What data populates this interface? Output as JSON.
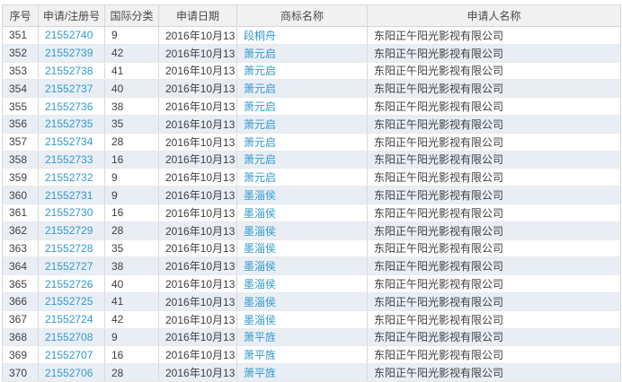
{
  "colors": {
    "link_blue": "#3399cc",
    "header_bg": "#f1f1f1",
    "alt_row_bg": "#e9eef5",
    "body_text": "#404040"
  },
  "table": {
    "columns": [
      {
        "key": "seq",
        "label": "序号"
      },
      {
        "key": "reg_no",
        "label": "申请/注册号"
      },
      {
        "key": "intl_class",
        "label": "国际分类"
      },
      {
        "key": "apply_date",
        "label": "申请日期"
      },
      {
        "key": "trademark_name",
        "label": "商标名称"
      },
      {
        "key": "applicant",
        "label": "申请人名称"
      }
    ],
    "rows": [
      {
        "seq": "351",
        "reg_no": "21552740",
        "intl_class": "9",
        "apply_date": "2016年10月13日",
        "trademark_name": "段桐舟",
        "applicant": "东阳正午阳光影视有限公司"
      },
      {
        "seq": "352",
        "reg_no": "21552739",
        "intl_class": "42",
        "apply_date": "2016年10月13日",
        "trademark_name": "萧元启",
        "applicant": "东阳正午阳光影视有限公司"
      },
      {
        "seq": "353",
        "reg_no": "21552738",
        "intl_class": "41",
        "apply_date": "2016年10月13日",
        "trademark_name": "萧元启",
        "applicant": "东阳正午阳光影视有限公司"
      },
      {
        "seq": "354",
        "reg_no": "21552737",
        "intl_class": "40",
        "apply_date": "2016年10月13日",
        "trademark_name": "萧元启",
        "applicant": "东阳正午阳光影视有限公司"
      },
      {
        "seq": "355",
        "reg_no": "21552736",
        "intl_class": "38",
        "apply_date": "2016年10月13日",
        "trademark_name": "萧元启",
        "applicant": "东阳正午阳光影视有限公司"
      },
      {
        "seq": "356",
        "reg_no": "21552735",
        "intl_class": "35",
        "apply_date": "2016年10月13日",
        "trademark_name": "萧元启",
        "applicant": "东阳正午阳光影视有限公司"
      },
      {
        "seq": "357",
        "reg_no": "21552734",
        "intl_class": "28",
        "apply_date": "2016年10月13日",
        "trademark_name": "萧元启",
        "applicant": "东阳正午阳光影视有限公司"
      },
      {
        "seq": "358",
        "reg_no": "21552733",
        "intl_class": "16",
        "apply_date": "2016年10月13日",
        "trademark_name": "萧元启",
        "applicant": "东阳正午阳光影视有限公司"
      },
      {
        "seq": "359",
        "reg_no": "21552732",
        "intl_class": "9",
        "apply_date": "2016年10月13日",
        "trademark_name": "萧元启",
        "applicant": "东阳正午阳光影视有限公司"
      },
      {
        "seq": "360",
        "reg_no": "21552731",
        "intl_class": "9",
        "apply_date": "2016年10月13日",
        "trademark_name": "墨淄侯",
        "applicant": "东阳正午阳光影视有限公司"
      },
      {
        "seq": "361",
        "reg_no": "21552730",
        "intl_class": "16",
        "apply_date": "2016年10月13日",
        "trademark_name": "墨淄侯",
        "applicant": "东阳正午阳光影视有限公司"
      },
      {
        "seq": "362",
        "reg_no": "21552729",
        "intl_class": "28",
        "apply_date": "2016年10月13日",
        "trademark_name": "墨淄侯",
        "applicant": "东阳正午阳光影视有限公司"
      },
      {
        "seq": "363",
        "reg_no": "21552728",
        "intl_class": "35",
        "apply_date": "2016年10月13日",
        "trademark_name": "墨淄侯",
        "applicant": "东阳正午阳光影视有限公司"
      },
      {
        "seq": "364",
        "reg_no": "21552727",
        "intl_class": "38",
        "apply_date": "2016年10月13日",
        "trademark_name": "墨淄侯",
        "applicant": "东阳正午阳光影视有限公司"
      },
      {
        "seq": "365",
        "reg_no": "21552726",
        "intl_class": "40",
        "apply_date": "2016年10月13日",
        "trademark_name": "墨淄侯",
        "applicant": "东阳正午阳光影视有限公司"
      },
      {
        "seq": "366",
        "reg_no": "21552725",
        "intl_class": "41",
        "apply_date": "2016年10月13日",
        "trademark_name": "墨淄侯",
        "applicant": "东阳正午阳光影视有限公司"
      },
      {
        "seq": "367",
        "reg_no": "21552724",
        "intl_class": "42",
        "apply_date": "2016年10月13日",
        "trademark_name": "墨淄侯",
        "applicant": "东阳正午阳光影视有限公司"
      },
      {
        "seq": "368",
        "reg_no": "21552708",
        "intl_class": "9",
        "apply_date": "2016年10月13日",
        "trademark_name": "萧平旌",
        "applicant": "东阳正午阳光影视有限公司"
      },
      {
        "seq": "369",
        "reg_no": "21552707",
        "intl_class": "16",
        "apply_date": "2016年10月13日",
        "trademark_name": "萧平旌",
        "applicant": "东阳正午阳光影视有限公司"
      },
      {
        "seq": "370",
        "reg_no": "21552706",
        "intl_class": "28",
        "apply_date": "2016年10月13日",
        "trademark_name": "萧平旌",
        "applicant": "东阳正午阳光影视有限公司"
      }
    ]
  }
}
